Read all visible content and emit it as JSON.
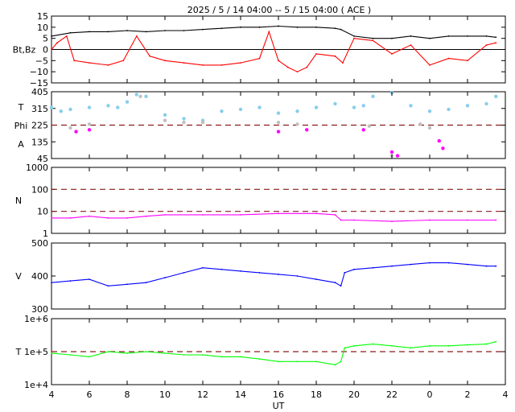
{
  "title": "2025 /  5 / 14   04:00 --  5 / 15   04:00 ( ACE )",
  "xlabel": "UT",
  "x_ticks": [
    "4",
    "6",
    "8",
    "10",
    "12",
    "14",
    "16",
    "18",
    "20",
    "22",
    "0",
    "2",
    "4"
  ],
  "chart_data": [
    {
      "type": "line",
      "name": "magnetic-field",
      "ylabel": "Bt,Bz",
      "ylim": [
        -15,
        15
      ],
      "yticks": [
        "15",
        "10",
        "5",
        "0",
        "−5",
        "−10",
        "−15"
      ],
      "reference_lines": [
        0
      ],
      "x_range_hours_ut": [
        4,
        28
      ],
      "series": [
        {
          "color": "#000000",
          "points": [
            [
              4,
              6
            ],
            [
              5,
              7.5
            ],
            [
              6,
              8
            ],
            [
              7,
              8
            ],
            [
              8,
              8.5
            ],
            [
              9,
              8
            ],
            [
              10,
              8.5
            ],
            [
              11,
              8.5
            ],
            [
              12,
              9
            ],
            [
              13,
              9.5
            ],
            [
              14,
              10
            ],
            [
              15,
              10
            ],
            [
              16,
              10.5
            ],
            [
              17,
              10
            ],
            [
              18,
              10
            ],
            [
              19,
              9.5
            ],
            [
              19.3,
              9
            ],
            [
              20,
              6
            ],
            [
              21,
              5
            ],
            [
              22,
              5
            ],
            [
              23,
              6
            ],
            [
              24,
              5
            ],
            [
              25,
              6
            ],
            [
              26,
              6
            ],
            [
              27,
              6
            ],
            [
              27.5,
              5.5
            ]
          ]
        },
        {
          "color": "#ff0000",
          "points": [
            [
              4,
              0
            ],
            [
              4.3,
              3
            ],
            [
              4.8,
              6
            ],
            [
              5.2,
              -5
            ],
            [
              6,
              -6
            ],
            [
              7,
              -7
            ],
            [
              7.8,
              -5
            ],
            [
              8.5,
              6
            ],
            [
              9.2,
              -3
            ],
            [
              10,
              -5
            ],
            [
              11,
              -6
            ],
            [
              12,
              -7
            ],
            [
              13,
              -7
            ],
            [
              14,
              -6
            ],
            [
              15,
              -4
            ],
            [
              15.5,
              8
            ],
            [
              16,
              -5
            ],
            [
              16.5,
              -8
            ],
            [
              17,
              -10
            ],
            [
              17.5,
              -8
            ],
            [
              18,
              -2
            ],
            [
              19,
              -3
            ],
            [
              19.4,
              -6
            ],
            [
              20,
              5
            ],
            [
              21,
              4
            ],
            [
              22,
              -2
            ],
            [
              23,
              2
            ],
            [
              24,
              -7
            ],
            [
              25,
              -4
            ],
            [
              26,
              -5
            ],
            [
              27,
              2
            ],
            [
              27.5,
              3
            ]
          ]
        }
      ]
    },
    {
      "type": "scatter",
      "name": "phi-angle",
      "ylabel_lines": [
        "T",
        "Phi",
        "A"
      ],
      "ylim": [
        45,
        405
      ],
      "yticks": [
        "405",
        "315",
        "225",
        "135",
        "45"
      ],
      "reference_lines": [
        225
      ],
      "series": [
        {
          "color": "#87ceeb",
          "points": [
            [
              4,
              320
            ],
            [
              4.5,
              300
            ],
            [
              5,
              310
            ],
            [
              6,
              320
            ],
            [
              7,
              330
            ],
            [
              7.5,
              320
            ],
            [
              8,
              350
            ],
            [
              8.5,
              390
            ],
            [
              9,
              380
            ],
            [
              10,
              280
            ],
            [
              11,
              260
            ],
            [
              12,
              250
            ],
            [
              13,
              300
            ],
            [
              14,
              310
            ],
            [
              15,
              320
            ],
            [
              16,
              290
            ],
            [
              17,
              300
            ],
            [
              18,
              320
            ],
            [
              19,
              340
            ],
            [
              20,
              320
            ],
            [
              20.5,
              330
            ],
            [
              21,
              380
            ],
            [
              22,
              400
            ],
            [
              23,
              330
            ],
            [
              24,
              300
            ],
            [
              25,
              310
            ],
            [
              26,
              330
            ],
            [
              27,
              340
            ],
            [
              27.5,
              380
            ]
          ]
        },
        {
          "color": "#c0c0c0",
          "points": [
            [
              5,
              210
            ],
            [
              6,
              230
            ],
            [
              8.7,
              380
            ],
            [
              10,
              250
            ],
            [
              11,
              240
            ],
            [
              12,
              240
            ],
            [
              16,
              240
            ],
            [
              17,
              230
            ],
            [
              20.8,
              220
            ],
            [
              22,
              60
            ],
            [
              23.5,
              230
            ],
            [
              24,
              210
            ]
          ]
        },
        {
          "color": "#ff00ff",
          "points": [
            [
              5.3,
              190
            ],
            [
              6,
              200
            ],
            [
              16,
              190
            ],
            [
              17.5,
              200
            ],
            [
              20.5,
              200
            ],
            [
              22,
              80
            ],
            [
              22.3,
              60
            ],
            [
              24.5,
              140
            ],
            [
              24.7,
              100
            ]
          ]
        }
      ]
    },
    {
      "type": "line",
      "name": "density",
      "ylabel": "N",
      "yscale": "log",
      "ylim": [
        1,
        1000
      ],
      "yticks": [
        "1000",
        "100",
        "10",
        "1"
      ],
      "reference_lines": [
        100,
        10
      ],
      "series": [
        {
          "color": "#ff00ff",
          "points": [
            [
              4,
              5
            ],
            [
              5,
              5
            ],
            [
              6,
              6
            ],
            [
              7,
              5
            ],
            [
              8,
              5
            ],
            [
              9,
              6
            ],
            [
              10,
              7
            ],
            [
              12,
              7
            ],
            [
              14,
              7
            ],
            [
              16,
              8
            ],
            [
              18,
              8
            ],
            [
              19,
              7
            ],
            [
              19.3,
              4
            ],
            [
              20,
              4
            ],
            [
              22,
              3.5
            ],
            [
              24,
              4
            ],
            [
              26,
              4
            ],
            [
              27.5,
              4
            ]
          ]
        }
      ]
    },
    {
      "type": "line",
      "name": "velocity",
      "ylabel": "V",
      "ylim": [
        300,
        500
      ],
      "yticks": [
        "500",
        "400",
        "300"
      ],
      "series": [
        {
          "color": "#0000ff",
          "points": [
            [
              4,
              380
            ],
            [
              5,
              385
            ],
            [
              6,
              390
            ],
            [
              7,
              370
            ],
            [
              8,
              375
            ],
            [
              9,
              380
            ],
            [
              10,
              395
            ],
            [
              11,
              410
            ],
            [
              12,
              425
            ],
            [
              13,
              420
            ],
            [
              14,
              415
            ],
            [
              15,
              410
            ],
            [
              16,
              405
            ],
            [
              17,
              400
            ],
            [
              18,
              390
            ],
            [
              19,
              380
            ],
            [
              19.3,
              370
            ],
            [
              19.5,
              410
            ],
            [
              20,
              420
            ],
            [
              21,
              425
            ],
            [
              22,
              430
            ],
            [
              23,
              435
            ],
            [
              24,
              440
            ],
            [
              25,
              440
            ],
            [
              26,
              435
            ],
            [
              27,
              430
            ],
            [
              27.5,
              430
            ]
          ]
        }
      ]
    },
    {
      "type": "line",
      "name": "temperature",
      "ylabel": "T",
      "yscale": "log",
      "ylim": [
        10000,
        1000000
      ],
      "yticks": [
        "1e+6",
        "1e+5",
        "1e+4"
      ],
      "reference_lines": [
        100000
      ],
      "series": [
        {
          "color": "#00ff00",
          "points": [
            [
              4,
              90000
            ],
            [
              5,
              80000
            ],
            [
              6,
              70000
            ],
            [
              7,
              100000
            ],
            [
              8,
              90000
            ],
            [
              9,
              100000
            ],
            [
              10,
              90000
            ],
            [
              11,
              80000
            ],
            [
              12,
              80000
            ],
            [
              13,
              70000
            ],
            [
              14,
              70000
            ],
            [
              15,
              60000
            ],
            [
              16,
              50000
            ],
            [
              17,
              50000
            ],
            [
              18,
              50000
            ],
            [
              19,
              40000
            ],
            [
              19.3,
              50000
            ],
            [
              19.5,
              130000
            ],
            [
              20,
              150000
            ],
            [
              21,
              170000
            ],
            [
              22,
              150000
            ],
            [
              23,
              130000
            ],
            [
              24,
              150000
            ],
            [
              25,
              150000
            ],
            [
              26,
              160000
            ],
            [
              27,
              170000
            ],
            [
              27.5,
              200000
            ]
          ]
        }
      ]
    }
  ]
}
